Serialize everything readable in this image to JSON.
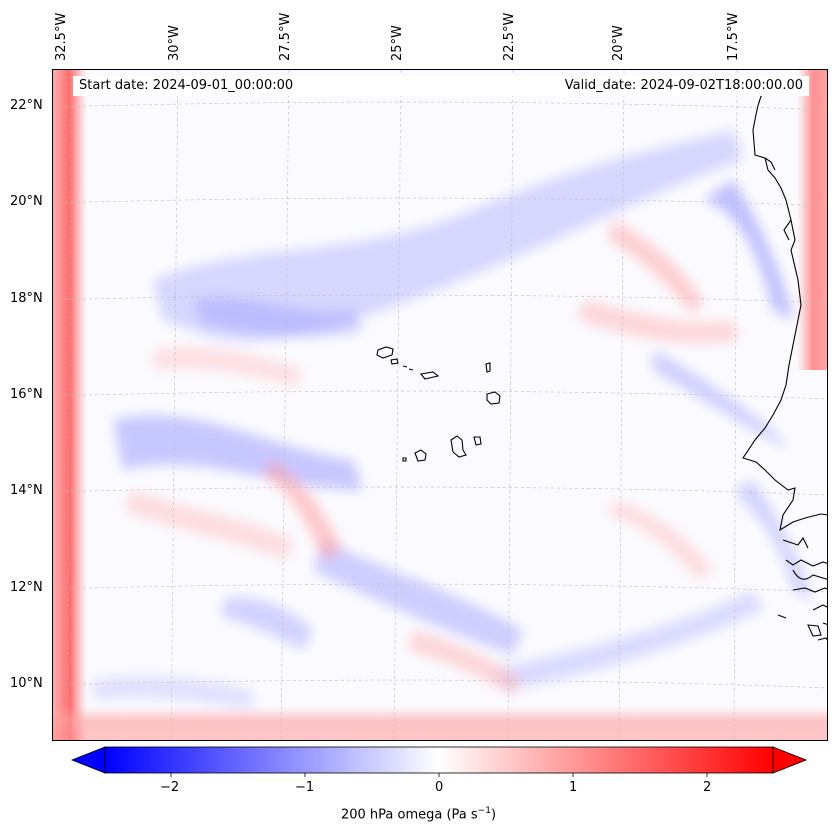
{
  "map": {
    "header": {
      "start_label": "Start date: 2024-09-01_00:00:00",
      "valid_label": "Valid_date: 2024-09-02T18:00:00.00"
    },
    "lon_labels": [
      "32.5°W",
      "30°W",
      "27.5°W",
      "25°W",
      "22.5°W",
      "20°W",
      "17.5°W"
    ],
    "lat_labels": [
      "22°N",
      "20°N",
      "18°N",
      "16°N",
      "14°N",
      "12°N",
      "10°N"
    ],
    "field": {
      "variable": "200 hPa omega",
      "units": "Pa s⁻¹",
      "colormap": "bwr",
      "colors": {
        "negative": "#0000ff",
        "zero": "#ffffff",
        "positive": "#ff0000"
      }
    }
  },
  "colorbar": {
    "ticks": [
      "−2",
      "−1",
      "0",
      "1",
      "2"
    ],
    "label": "200 hPa omega (Pa s",
    "label_sup": "−1",
    "label_end": ")",
    "range": [
      -2.6,
      2.6
    ],
    "extend": "both"
  }
}
